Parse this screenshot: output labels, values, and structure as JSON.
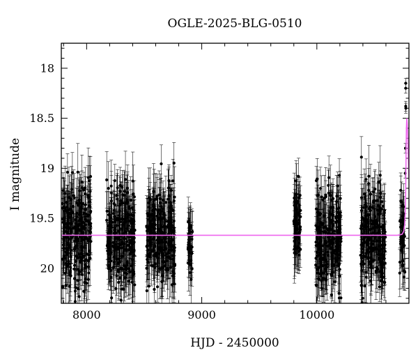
{
  "chart_data": {
    "type": "scatter",
    "title": "OGLE-2025-BLG-0510",
    "xlabel": "HJD - 2450000",
    "ylabel": "I magnitude",
    "xlim": [
      7780,
      10800
    ],
    "ylim": [
      20.35,
      17.75
    ],
    "y_inverted": true,
    "x_ticks": [
      8000,
      9000,
      10000
    ],
    "y_ticks": [
      18,
      18.5,
      19,
      19.5,
      20
    ],
    "x_tick_labels": [
      "8000",
      "9000",
      "10000"
    ],
    "y_tick_labels": [
      "18",
      "18.5",
      "19",
      "19.5",
      "20"
    ],
    "grid": false,
    "baseline_mag": 19.67,
    "series": [
      {
        "kind": "photometry",
        "seasons": [
          {
            "start": 7790,
            "end": 8040,
            "mean_mag": 19.67,
            "scatter": 0.26,
            "err": 0.22
          },
          {
            "start": 8170,
            "end": 8420,
            "mean_mag": 19.67,
            "scatter": 0.26,
            "err": 0.22
          },
          {
            "start": 8520,
            "end": 8770,
            "mean_mag": 19.67,
            "scatter": 0.26,
            "err": 0.22
          },
          {
            "start": 8880,
            "end": 8920,
            "mean_mag": 19.7,
            "scatter": 0.2,
            "err": 0.2
          },
          {
            "start": 9800,
            "end": 9860,
            "mean_mag": 19.62,
            "scatter": 0.22,
            "err": 0.22
          },
          {
            "start": 9990,
            "end": 10210,
            "mean_mag": 19.7,
            "scatter": 0.25,
            "err": 0.22
          },
          {
            "start": 10380,
            "end": 10600,
            "mean_mag": 19.72,
            "scatter": 0.25,
            "err": 0.22
          },
          {
            "start": 10720,
            "end": 10765,
            "mean_mag": 19.65,
            "scatter": 0.2,
            "err": 0.2
          }
        ],
        "peak_points": [
          {
            "x": 10772,
            "y": 18.15
          },
          {
            "x": 10772,
            "y": 18.2
          },
          {
            "x": 10772,
            "y": 18.38
          },
          {
            "x": 10773,
            "y": 18.4
          },
          {
            "x": 10770,
            "y": 18.8
          },
          {
            "x": 10768,
            "y": 19.05
          }
        ]
      },
      {
        "kind": "model",
        "color": "#ee66ee",
        "x": [
          7780,
          10700,
          10740,
          10755,
          10763,
          10768,
          10771,
          10773,
          10775,
          10778,
          10781,
          10785,
          10790,
          10795,
          10800
        ],
        "y": [
          19.67,
          19.67,
          19.66,
          19.63,
          19.56,
          19.45,
          19.3,
          19.1,
          18.85,
          18.6,
          18.5,
          18.55,
          18.7,
          18.9,
          19.1
        ]
      }
    ]
  }
}
